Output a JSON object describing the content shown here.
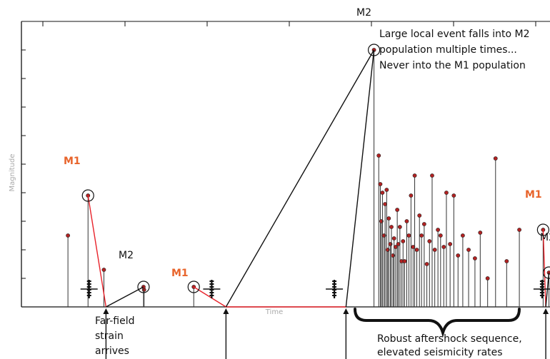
{
  "colors": {
    "accent": "#e8642b",
    "marker": "#b22222",
    "connector_red": "#e8232b",
    "ink": "#111111",
    "axis_label": "#aaaaaa"
  },
  "axes": {
    "xlabel": "Time",
    "ylabel": "Magnitude",
    "xlim": [
      0,
      1000
    ],
    "ylim": [
      0,
      10
    ],
    "grid": false
  },
  "labels": {
    "m1": "M1",
    "m2": "M2"
  },
  "annotations": {
    "top": [
      "Large local event falls into M2",
      "population multiple times...",
      "Never into the M1 population"
    ],
    "far_field": [
      "Far-field",
      "strain",
      "arrives"
    ],
    "aftershock": [
      "Robust aftershock sequence,",
      "elevated seismicity rates"
    ]
  },
  "chart_data": {
    "type": "scatter",
    "title": "",
    "xlabel": "Time",
    "ylabel": "Magnitude",
    "ylim": [
      0,
      10
    ],
    "background_events": [
      {
        "t": 88,
        "m": 2.5
      },
      {
        "t": 156,
        "m": 1.3
      },
      {
        "t": 232,
        "m": 0.6
      },
      {
        "t": 676,
        "m": 5.3
      },
      {
        "t": 679,
        "m": 4.3
      },
      {
        "t": 681,
        "m": 3.0
      },
      {
        "t": 683,
        "m": 4.0
      },
      {
        "t": 686,
        "m": 2.5
      },
      {
        "t": 688,
        "m": 3.6
      },
      {
        "t": 691,
        "m": 4.1
      },
      {
        "t": 693,
        "m": 2.0
      },
      {
        "t": 695,
        "m": 3.1
      },
      {
        "t": 698,
        "m": 2.2
      },
      {
        "t": 700,
        "m": 2.8
      },
      {
        "t": 703,
        "m": 1.8
      },
      {
        "t": 705,
        "m": 2.4
      },
      {
        "t": 708,
        "m": 2.1
      },
      {
        "t": 711,
        "m": 3.4
      },
      {
        "t": 713,
        "m": 2.2
      },
      {
        "t": 716,
        "m": 2.8
      },
      {
        "t": 719,
        "m": 1.6
      },
      {
        "t": 722,
        "m": 2.3
      },
      {
        "t": 725,
        "m": 1.6
      },
      {
        "t": 729,
        "m": 3.0
      },
      {
        "t": 733,
        "m": 2.5
      },
      {
        "t": 737,
        "m": 3.9
      },
      {
        "t": 741,
        "m": 2.1
      },
      {
        "t": 744,
        "m": 4.6
      },
      {
        "t": 748,
        "m": 2.0
      },
      {
        "t": 753,
        "m": 3.2
      },
      {
        "t": 757,
        "m": 2.5
      },
      {
        "t": 762,
        "m": 2.9
      },
      {
        "t": 767,
        "m": 1.5
      },
      {
        "t": 772,
        "m": 2.3
      },
      {
        "t": 777,
        "m": 4.6
      },
      {
        "t": 782,
        "m": 2.0
      },
      {
        "t": 788,
        "m": 2.7
      },
      {
        "t": 793,
        "m": 2.5
      },
      {
        "t": 799,
        "m": 2.1
      },
      {
        "t": 804,
        "m": 4.0
      },
      {
        "t": 811,
        "m": 2.2
      },
      {
        "t": 818,
        "m": 3.9
      },
      {
        "t": 826,
        "m": 1.8
      },
      {
        "t": 835,
        "m": 2.5
      },
      {
        "t": 846,
        "m": 2.0
      },
      {
        "t": 858,
        "m": 1.7
      },
      {
        "t": 868,
        "m": 2.6
      },
      {
        "t": 882,
        "m": 1.0
      },
      {
        "t": 897,
        "m": 5.2
      },
      {
        "t": 918,
        "m": 1.6
      },
      {
        "t": 942,
        "m": 2.7
      }
    ],
    "labeled_events": [
      {
        "t": 126,
        "m": 3.9,
        "label": "M1"
      },
      {
        "t": 231,
        "m": 0.7,
        "label": "M2"
      },
      {
        "t": 326,
        "m": 0.7,
        "label": "M1"
      },
      {
        "t": 667,
        "m": 9.0,
        "label": "M2"
      },
      {
        "t": 987,
        "m": 2.7,
        "label": "M1"
      },
      {
        "t": 998,
        "m": 1.2,
        "label": "M2"
      }
    ],
    "arrivals": [
      160,
      387,
      614,
      992
    ]
  }
}
